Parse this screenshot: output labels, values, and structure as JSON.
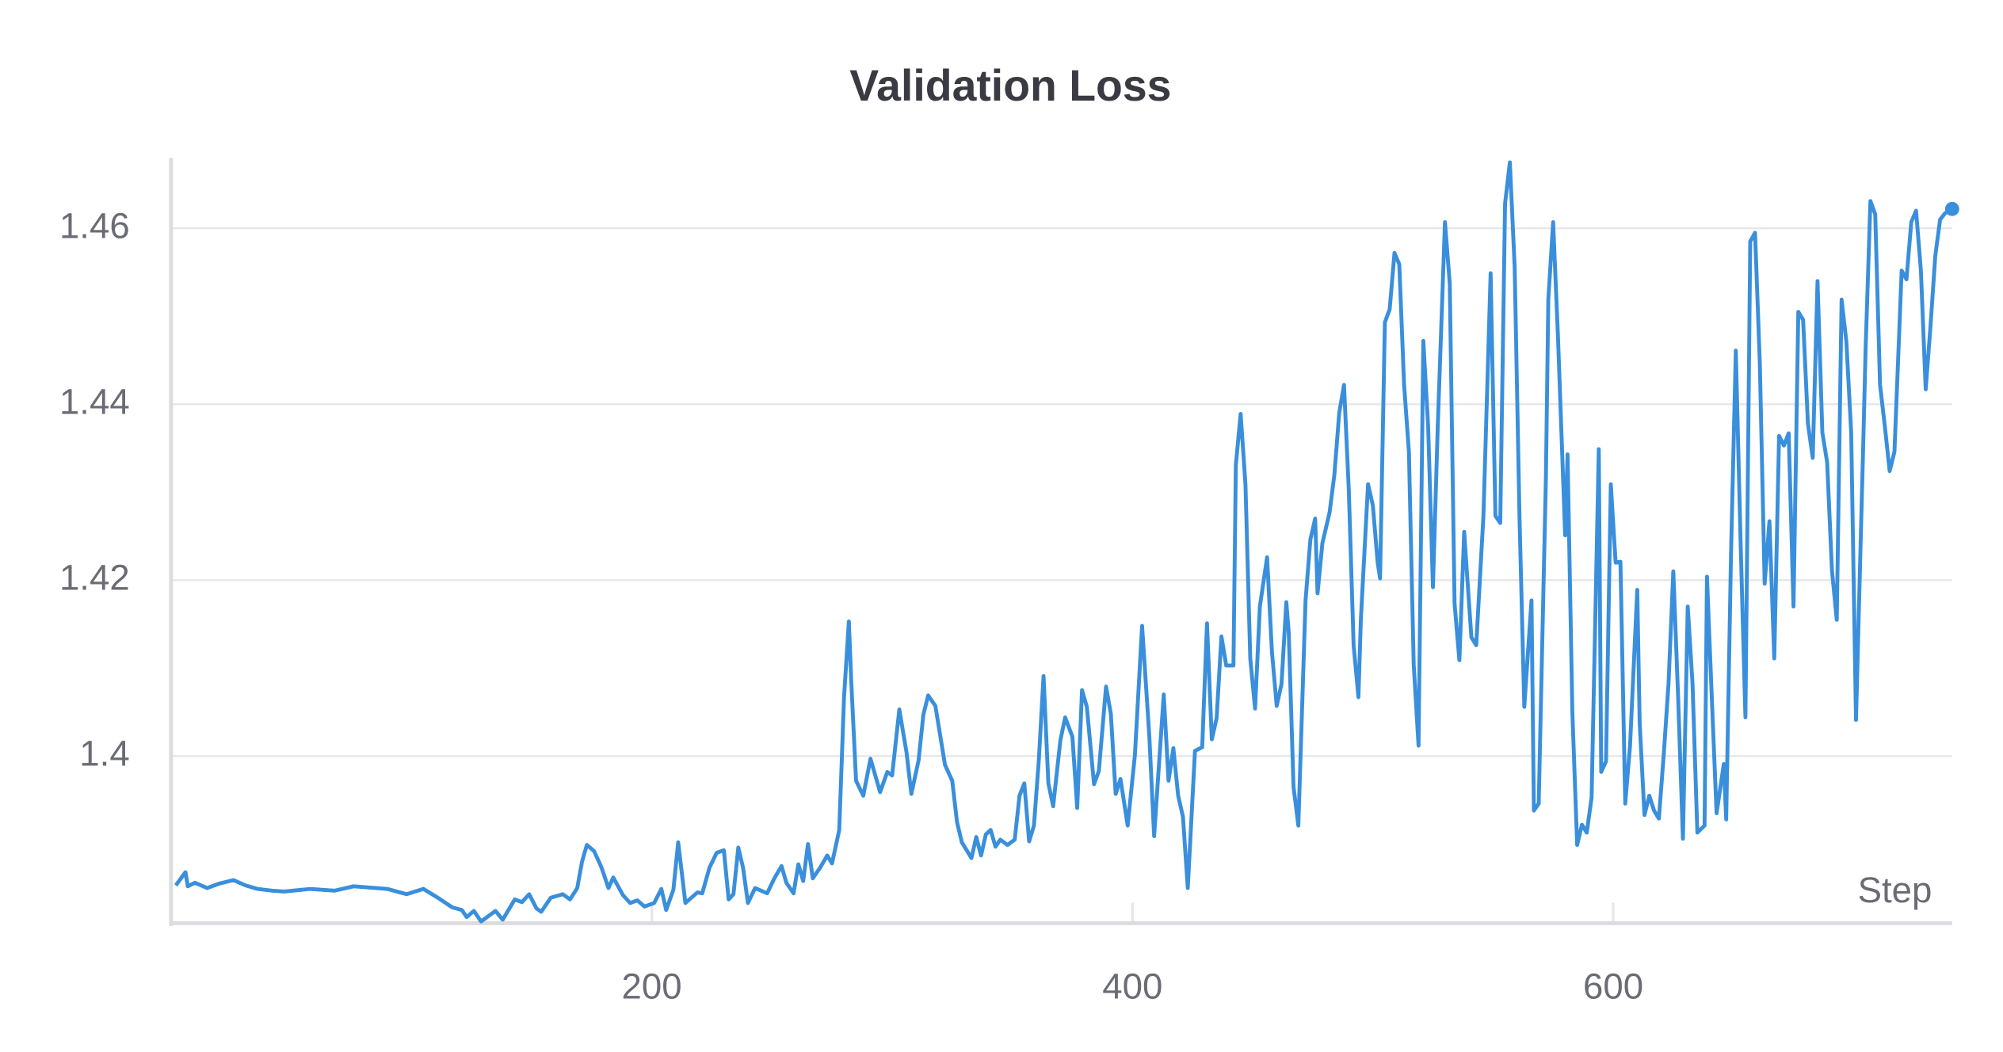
{
  "chart_data": {
    "type": "line",
    "title": "Validation Loss",
    "x_label": "Step",
    "color": "#3a8fdc",
    "grid": true,
    "xlim": [
      0,
      741
    ],
    "xticks": [
      200,
      400,
      600
    ],
    "ylim": [
      1.381,
      1.468
    ],
    "yticks": [
      1.4,
      1.42,
      1.44,
      1.46
    ],
    "x": [
      2,
      6,
      7,
      10,
      15,
      20,
      26,
      31,
      36,
      42,
      47,
      58,
      68,
      76,
      90,
      98,
      105,
      111,
      117,
      121,
      123,
      126,
      129,
      132,
      135,
      138,
      143,
      146,
      149,
      152,
      154,
      158,
      163,
      166,
      169,
      171,
      173,
      176,
      179,
      182,
      184,
      188,
      191,
      194,
      197,
      201,
      204,
      206,
      209,
      211,
      214,
      219,
      221,
      224,
      227,
      230,
      232,
      234,
      236,
      238,
      240,
      243,
      248,
      251,
      254,
      256,
      259,
      261,
      263,
      265,
      267,
      270,
      273,
      275,
      278,
      280,
      282,
      283,
      285,
      288,
      291,
      295,
      298,
      300,
      303,
      306,
      308,
      311,
      313,
      315,
      318,
      322,
      325,
      327,
      329,
      333,
      335,
      337,
      339,
      341,
      343,
      345,
      348,
      351,
      353,
      355,
      357,
      359,
      361,
      363,
      365,
      367,
      370,
      372,
      375,
      377,
      379,
      381,
      384,
      386,
      389,
      391,
      393,
      395,
      398,
      401,
      404,
      407,
      409,
      413,
      415,
      417,
      419,
      421,
      423,
      426,
      429,
      431,
      433,
      435,
      437,
      439,
      442,
      443,
      445,
      447,
      449,
      451,
      453,
      456,
      458,
      460,
      462,
      464,
      465,
      467,
      469,
      472,
      474,
      476,
      477,
      479,
      482,
      484,
      486,
      488,
      490,
      492,
      494,
      495,
      498,
      500,
      502,
      503,
      505,
      507,
      509,
      511,
      513,
      515,
      517,
      519,
      521,
      523,
      525,
      527,
      530,
      532,
      534,
      536,
      538,
      539,
      541,
      543,
      546,
      549,
      551,
      553,
      555,
      557,
      559,
      561,
      563,
      566,
      567,
      569,
      572,
      573,
      575,
      577,
      580,
      581,
      583,
      585,
      587,
      589,
      591,
      594,
      595,
      597,
      599,
      601,
      603,
      605,
      607,
      610,
      611,
      613,
      615,
      617,
      619,
      621,
      623,
      625,
      627,
      629,
      631,
      633,
      635,
      638,
      639,
      641,
      643,
      646,
      647,
      649,
      651,
      653,
      655,
      657,
      659,
      661,
      663,
      665,
      667,
      669,
      671,
      673,
      675,
      677,
      679,
      681,
      683,
      685,
      687,
      689,
      691,
      693,
      695,
      697,
      699,
      701,
      704,
      705,
      707,
      709,
      711,
      713,
      715,
      717,
      720,
      722,
      724,
      726,
      728,
      730,
      732,
      734,
      736,
      738,
      741
    ],
    "values": [
      1.3853,
      1.3868,
      1.3852,
      1.3856,
      1.385,
      1.3855,
      1.3859,
      1.3853,
      1.3849,
      1.3847,
      1.3846,
      1.3849,
      1.3847,
      1.3852,
      1.3849,
      1.3843,
      1.3849,
      1.3839,
      1.3828,
      1.3825,
      1.3817,
      1.3824,
      1.3812,
      1.3818,
      1.3824,
      1.3814,
      1.3837,
      1.3834,
      1.3843,
      1.3827,
      1.3823,
      1.3839,
      1.3843,
      1.3837,
      1.385,
      1.388,
      1.3899,
      1.3892,
      1.3874,
      1.385,
      1.3862,
      1.3842,
      1.3833,
      1.3836,
      1.3829,
      1.3833,
      1.3849,
      1.3825,
      1.3848,
      1.3902,
      1.3833,
      1.3845,
      1.3844,
      1.3873,
      1.389,
      1.3893,
      1.3837,
      1.3843,
      1.3896,
      1.3873,
      1.3833,
      1.385,
      1.3844,
      1.3861,
      1.3875,
      1.3856,
      1.3844,
      1.3877,
      1.3858,
      1.39,
      1.3861,
      1.3873,
      1.3887,
      1.3878,
      1.3916,
      1.4067,
      1.4153,
      1.4085,
      1.3972,
      1.3955,
      1.3997,
      1.3959,
      1.3982,
      1.3978,
      1.4053,
      1.4004,
      1.3957,
      1.3995,
      1.4047,
      1.4069,
      1.4057,
      1.399,
      1.3972,
      1.3925,
      1.3902,
      1.3884,
      1.3908,
      1.3887,
      1.3911,
      1.3916,
      1.3897,
      1.3905,
      1.3899,
      1.3905,
      1.3955,
      1.3969,
      1.3903,
      1.3921,
      1.3994,
      1.4091,
      1.3969,
      1.3943,
      1.4018,
      1.4044,
      1.4022,
      1.3941,
      1.4075,
      1.4056,
      1.3968,
      1.3983,
      1.4079,
      1.4048,
      1.3957,
      1.3974,
      1.3921,
      1.4001,
      1.4148,
      1.4023,
      1.3909,
      1.407,
      1.3972,
      1.4009,
      1.3955,
      1.3931,
      1.385,
      1.4006,
      1.401,
      1.4151,
      1.4019,
      1.4043,
      1.4136,
      1.4103,
      1.4103,
      1.4331,
      1.4389,
      1.4309,
      1.4111,
      1.4054,
      1.417,
      1.4226,
      1.4119,
      1.4057,
      1.4082,
      1.4175,
      1.4141,
      1.3965,
      1.3921,
      1.4177,
      1.4246,
      1.427,
      1.4185,
      1.4242,
      1.4277,
      1.432,
      1.439,
      1.4422,
      1.4302,
      1.4126,
      1.4067,
      1.4155,
      1.4309,
      1.4285,
      1.422,
      1.4202,
      1.4493,
      1.4508,
      1.4572,
      1.4559,
      1.4422,
      1.4346,
      1.4104,
      1.4012,
      1.4472,
      1.4375,
      1.4192,
      1.4375,
      1.4607,
      1.4537,
      1.4173,
      1.4109,
      1.4255,
      1.4214,
      1.4135,
      1.4126,
      1.4273,
      1.4549,
      1.4273,
      1.4265,
      1.4628,
      1.4675,
      1.4556,
      1.4273,
      1.4056,
      1.4177,
      1.3938,
      1.3946,
      1.4317,
      1.4519,
      1.4607,
      1.4478,
      1.4251,
      1.4343,
      1.405,
      1.3899,
      1.3922,
      1.3913,
      1.3953,
      1.4349,
      1.3982,
      1.3994,
      1.4309,
      1.422,
      1.4221,
      1.3946,
      1.4012,
      1.4189,
      1.4038,
      1.3933,
      1.3955,
      1.3938,
      1.3929,
      1.4001,
      1.4082,
      1.421,
      1.4067,
      1.3906,
      1.417,
      1.4082,
      1.3913,
      1.3921,
      1.4204,
      1.4067,
      1.3935,
      1.3991,
      1.3928,
      1.4229,
      1.4461,
      1.4243,
      1.4044,
      1.4585,
      1.4595,
      1.4446,
      1.4196,
      1.4267,
      1.4111,
      1.4364,
      1.4353,
      1.4367,
      1.417,
      1.4505,
      1.4496,
      1.4378,
      1.4339,
      1.454,
      1.4368,
      1.4334,
      1.4211,
      1.4155,
      1.4519,
      1.4471,
      1.4368,
      1.4041,
      1.4353,
      1.4463,
      1.4631,
      1.4616,
      1.4422,
      1.4375,
      1.4324,
      1.4346,
      1.4552,
      1.4542,
      1.4607,
      1.462,
      1.4552,
      1.4417,
      1.4489,
      1.4569,
      1.461,
      1.4617,
      1.4622
    ]
  }
}
